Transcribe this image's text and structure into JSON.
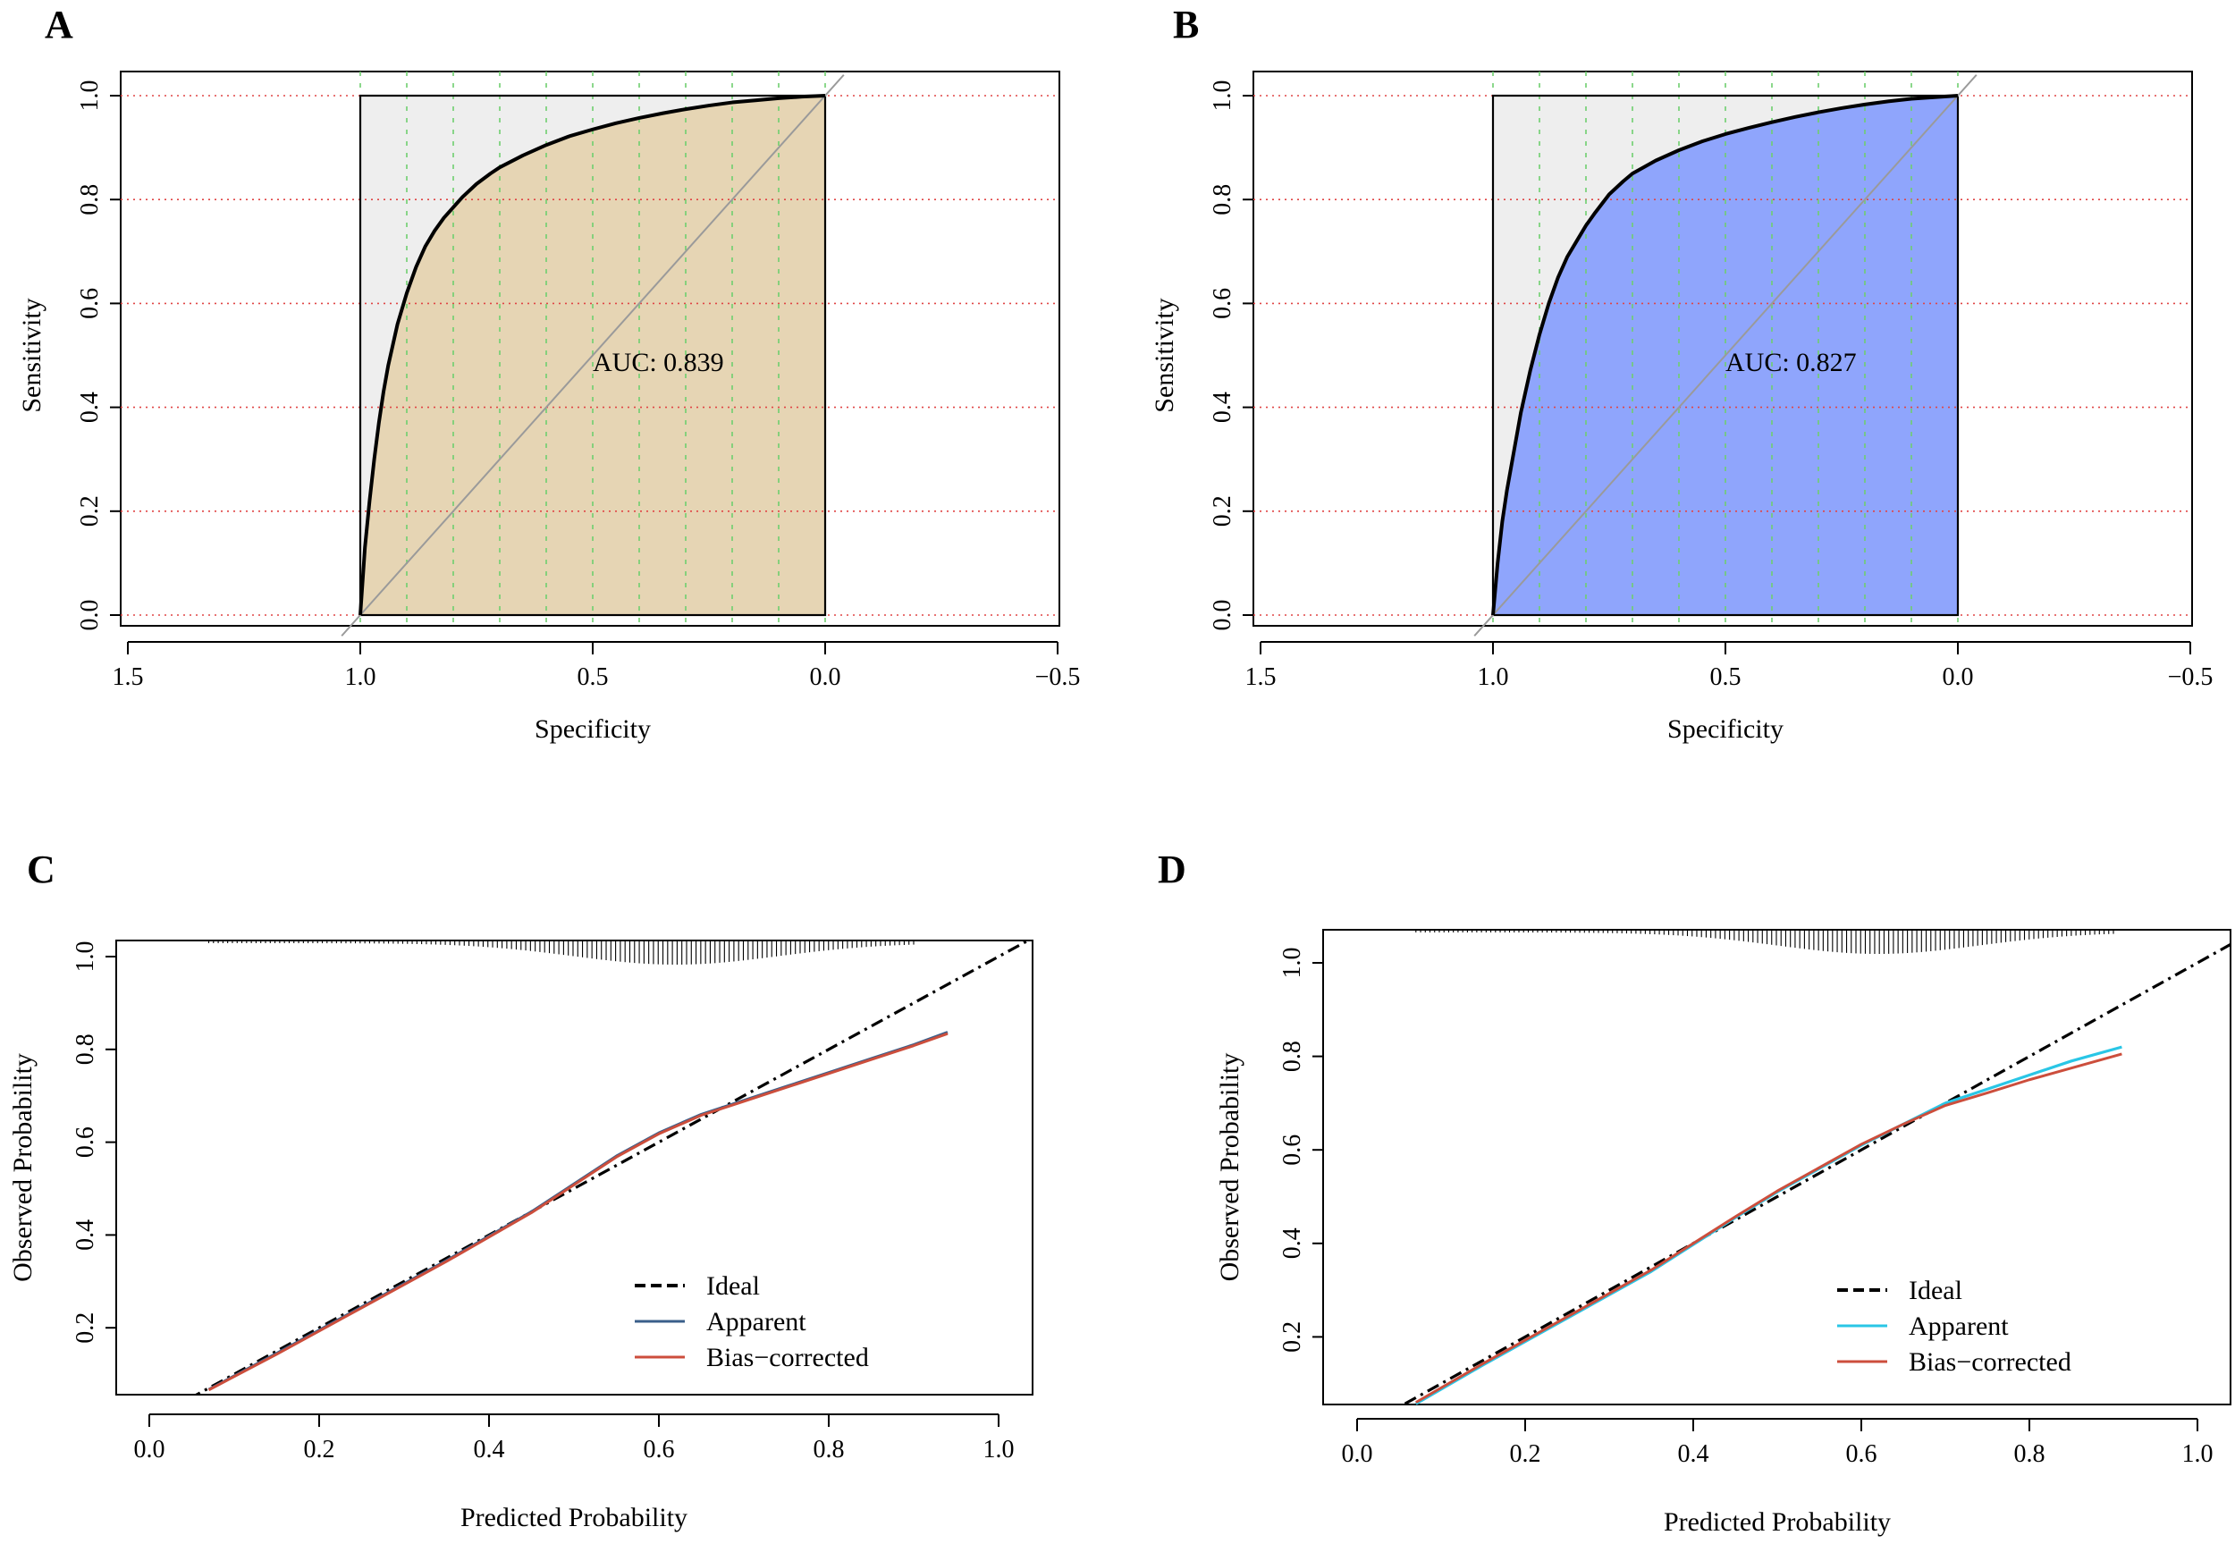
{
  "chart_data": [
    {
      "panel": "A",
      "type": "line",
      "subtype": "roc",
      "xlabel": "Specificity",
      "ylabel": "Sensitivity",
      "xlim": [
        1.5,
        -0.5
      ],
      "ylim": [
        0,
        1
      ],
      "xticks": [
        "1.5",
        "1.0",
        "0.5",
        "0.0",
        "−0.5"
      ],
      "yticks": [
        "0.0",
        "0.2",
        "0.4",
        "0.6",
        "0.8",
        "1.0"
      ],
      "auc_label": "AUC: 0.839",
      "auc": 0.839,
      "fill_color": "#e6d5b4",
      "grid": "on",
      "grid_color_h": "#e04545",
      "grid_color_v": "#6fcf6f",
      "curve": {
        "specificity": [
          1.0,
          0.99,
          0.98,
          0.97,
          0.96,
          0.95,
          0.94,
          0.93,
          0.92,
          0.9,
          0.88,
          0.86,
          0.84,
          0.82,
          0.8,
          0.78,
          0.75,
          0.72,
          0.7,
          0.65,
          0.6,
          0.55,
          0.5,
          0.45,
          0.4,
          0.35,
          0.3,
          0.25,
          0.2,
          0.15,
          0.1,
          0.05,
          0.0
        ],
        "sensitivity": [
          0.0,
          0.13,
          0.22,
          0.3,
          0.37,
          0.43,
          0.48,
          0.52,
          0.56,
          0.62,
          0.67,
          0.71,
          0.74,
          0.765,
          0.785,
          0.805,
          0.83,
          0.85,
          0.862,
          0.885,
          0.905,
          0.922,
          0.935,
          0.947,
          0.957,
          0.966,
          0.974,
          0.981,
          0.987,
          0.991,
          0.995,
          0.998,
          1.0
        ]
      }
    },
    {
      "panel": "B",
      "type": "line",
      "subtype": "roc",
      "xlabel": "Specificity",
      "ylabel": "Sensitivity",
      "xlim": [
        1.5,
        -0.5
      ],
      "ylim": [
        0,
        1
      ],
      "xticks": [
        "1.5",
        "1.0",
        "0.5",
        "0.0",
        "−0.5"
      ],
      "yticks": [
        "0.0",
        "0.2",
        "0.4",
        "0.6",
        "0.8",
        "1.0"
      ],
      "auc_label": "AUC: 0.827",
      "auc": 0.827,
      "fill_color": "#8fa5fc",
      "grid": "on",
      "grid_color_h": "#e04545",
      "grid_color_v": "#6fcf6f",
      "curve": {
        "specificity": [
          1.0,
          0.99,
          0.98,
          0.97,
          0.96,
          0.95,
          0.94,
          0.93,
          0.92,
          0.9,
          0.88,
          0.86,
          0.84,
          0.82,
          0.8,
          0.78,
          0.75,
          0.72,
          0.7,
          0.65,
          0.6,
          0.55,
          0.5,
          0.45,
          0.4,
          0.35,
          0.3,
          0.25,
          0.2,
          0.15,
          0.1,
          0.05,
          0.0
        ],
        "sensitivity": [
          0.0,
          0.1,
          0.18,
          0.24,
          0.29,
          0.34,
          0.39,
          0.43,
          0.47,
          0.54,
          0.6,
          0.65,
          0.69,
          0.72,
          0.75,
          0.775,
          0.81,
          0.835,
          0.85,
          0.875,
          0.895,
          0.912,
          0.926,
          0.938,
          0.949,
          0.959,
          0.968,
          0.976,
          0.983,
          0.989,
          0.994,
          0.997,
          1.0
        ]
      }
    },
    {
      "panel": "C",
      "type": "line",
      "subtype": "calibration",
      "xlabel": "Predicted Probability",
      "ylabel": "Observed Probability",
      "xlim": [
        -0.05,
        1.04
      ],
      "ylim": [
        0.0,
        1.04
      ],
      "xticks": [
        "0.0",
        "0.2",
        "0.4",
        "0.6",
        "0.8",
        "1.0"
      ],
      "yticks": [
        "0.2",
        "0.4",
        "0.6",
        "0.8",
        "1.0"
      ],
      "legend": [
        "Ideal",
        "Apparent",
        "Bias−corrected"
      ],
      "legend_position": "bottom-right",
      "colors": {
        "ideal": "#000000",
        "apparent": "#3a5f8a",
        "bias": "#cc4e3c"
      },
      "series": [
        {
          "name": "Ideal",
          "x": [
            0.02,
            1.04
          ],
          "y": [
            0.02,
            1.04
          ]
        },
        {
          "name": "Apparent",
          "x": [
            0.07,
            0.15,
            0.25,
            0.35,
            0.45,
            0.5,
            0.55,
            0.6,
            0.65,
            0.7,
            0.75,
            0.8,
            0.85,
            0.9,
            0.94
          ],
          "y": [
            0.067,
            0.145,
            0.245,
            0.345,
            0.45,
            0.51,
            0.57,
            0.62,
            0.66,
            0.69,
            0.72,
            0.75,
            0.78,
            0.81,
            0.837
          ]
        },
        {
          "name": "Bias−corrected",
          "x": [
            0.07,
            0.15,
            0.25,
            0.35,
            0.45,
            0.5,
            0.55,
            0.6,
            0.65,
            0.7,
            0.75,
            0.8,
            0.85,
            0.9,
            0.94
          ],
          "y": [
            0.066,
            0.143,
            0.243,
            0.343,
            0.448,
            0.508,
            0.568,
            0.618,
            0.658,
            0.688,
            0.718,
            0.748,
            0.778,
            0.808,
            0.834
          ]
        }
      ]
    },
    {
      "panel": "D",
      "type": "line",
      "subtype": "calibration",
      "xlabel": "Predicted Probability",
      "ylabel": "Observed Probability",
      "xlim": [
        -0.05,
        1.04
      ],
      "ylim": [
        0.0,
        1.04
      ],
      "xticks": [
        "0.0",
        "0.2",
        "0.4",
        "0.6",
        "0.8",
        "1.0"
      ],
      "yticks": [
        "0.2",
        "0.4",
        "0.6",
        "0.8",
        "1.0"
      ],
      "legend": [
        "Ideal",
        "Apparent",
        "Bias−corrected"
      ],
      "legend_position": "bottom-right",
      "colors": {
        "ideal": "#000000",
        "apparent": "#29c6e6",
        "bias": "#cc4e3c"
      },
      "series": [
        {
          "name": "Ideal",
          "x": [
            0.03,
            1.04
          ],
          "y": [
            0.03,
            1.04
          ]
        },
        {
          "name": "Apparent",
          "x": [
            0.07,
            0.15,
            0.25,
            0.35,
            0.45,
            0.5,
            0.55,
            0.6,
            0.65,
            0.7,
            0.75,
            0.8,
            0.85,
            0.91
          ],
          "y": [
            0.057,
            0.14,
            0.24,
            0.34,
            0.455,
            0.51,
            0.56,
            0.61,
            0.655,
            0.7,
            0.73,
            0.76,
            0.79,
            0.82
          ]
        },
        {
          "name": "Bias−corrected",
          "x": [
            0.07,
            0.15,
            0.25,
            0.35,
            0.45,
            0.5,
            0.55,
            0.6,
            0.65,
            0.7,
            0.75,
            0.8,
            0.85,
            0.91
          ],
          "y": [
            0.06,
            0.143,
            0.243,
            0.343,
            0.457,
            0.512,
            0.562,
            0.612,
            0.655,
            0.695,
            0.722,
            0.75,
            0.775,
            0.805
          ]
        }
      ]
    }
  ]
}
